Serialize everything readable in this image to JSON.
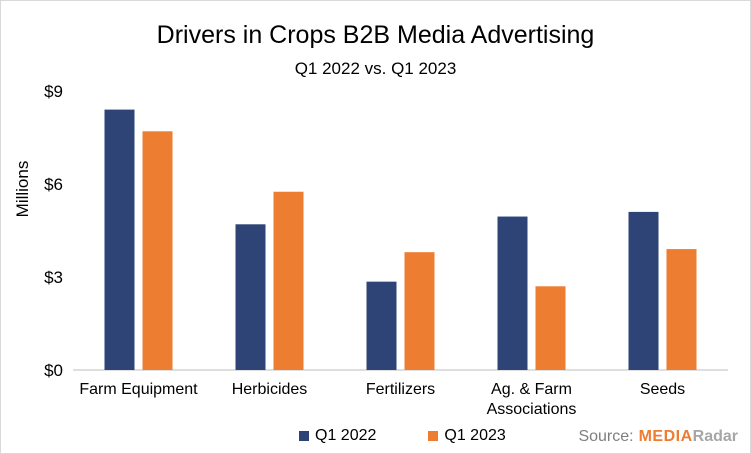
{
  "colors": {
    "series1": "#2e4476",
    "series2": "#ed7d31",
    "axis": "#bfbfbf"
  },
  "source": {
    "label": "Source:",
    "brand_part1": "MEDIA",
    "brand_part2": "Radar"
  },
  "chart_data": {
    "type": "bar",
    "title": "Drivers in Crops B2B Media Advertising",
    "subtitle": "Q1 2022 vs. Q1 2023",
    "xlabel": "",
    "ylabel": "Millions",
    "ylim": [
      0,
      9
    ],
    "yticks": [
      0,
      3,
      6,
      9
    ],
    "ytick_labels": [
      "$0",
      "$3",
      "$6",
      "$9"
    ],
    "grid": false,
    "legend_position": "bottom",
    "categories": [
      "Farm Equipment",
      "Herbicides",
      "Fertilizers",
      "Ag. & Farm Associations",
      "Seeds"
    ],
    "category_label_lines": [
      [
        "Farm Equipment"
      ],
      [
        "Herbicides"
      ],
      [
        "Fertilizers"
      ],
      [
        "Ag. & Farm",
        "Associations"
      ],
      [
        "Seeds"
      ]
    ],
    "series": [
      {
        "name": "Q1 2022",
        "values": [
          8.4,
          4.7,
          2.85,
          4.95,
          5.1
        ]
      },
      {
        "name": "Q1 2023",
        "values": [
          7.7,
          5.75,
          3.8,
          2.7,
          3.9
        ]
      }
    ]
  }
}
